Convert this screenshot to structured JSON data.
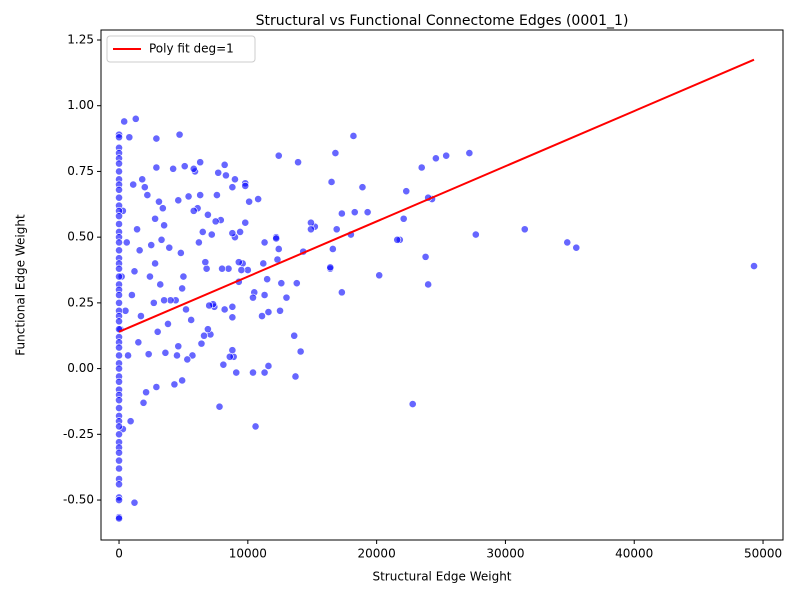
{
  "chart_data": {
    "type": "scatter",
    "title": "Structural vs Functional Connectome Edges (0001_1)",
    "xlabel": "Structural Edge Weight",
    "ylabel": "Functional Edge Weight",
    "xlim": [
      -1400,
      51550
    ],
    "ylim": [
      -0.652,
      1.288
    ],
    "xticks": [
      0,
      10000,
      20000,
      30000,
      40000,
      50000
    ],
    "yticks": [
      {
        "value": -0.5,
        "label": "-0.50"
      },
      -0.25,
      {
        "value": 0,
        "label": "0.00"
      },
      0.25,
      {
        "value": 0.5,
        "label": "0.50"
      },
      0.75,
      {
        "value": 1,
        "label": "1.00"
      },
      1.25
    ],
    "grid": false,
    "legend": "upper left",
    "series": [
      {
        "type": "scatter",
        "color": "#0000ff",
        "x": [
          49300,
          35500,
          34800,
          31500,
          27700,
          27200,
          25400,
          24600,
          24300,
          24000,
          24000,
          23800,
          23500,
          22800,
          22300,
          22100,
          21800,
          21600,
          20200,
          19300,
          18900,
          18300,
          18200,
          18000,
          17300,
          17300,
          16900,
          16800,
          16600,
          16500,
          16400,
          16400,
          15200,
          14900,
          14900,
          14300,
          14100,
          13900,
          13800,
          13700,
          13600,
          13000,
          12600,
          12400,
          12400,
          12300,
          12200,
          12200,
          12500,
          11600,
          11600,
          11500,
          11300,
          11300,
          11300,
          11100,
          11200,
          10800,
          10600,
          10500,
          10400,
          10400,
          10100,
          10000,
          9800,
          9800,
          9800,
          9600,
          9500,
          9400,
          9300,
          9300,
          9100,
          9000,
          9000,
          8900,
          8800,
          8800,
          8800,
          8800,
          8800,
          8600,
          8500,
          8300,
          8200,
          8200,
          8100,
          8000,
          7900,
          7800,
          7700,
          7600,
          7500,
          7400,
          7300,
          7200,
          7100,
          7000,
          6900,
          6900,
          6800,
          6700,
          6600,
          6500,
          6400,
          6300,
          6300,
          6200,
          6100,
          5900,
          5800,
          5800,
          5700,
          5600,
          5400,
          5300,
          5200,
          5100,
          5000,
          4900,
          4900,
          4800,
          4700,
          4600,
          4600,
          4500,
          4400,
          4300,
          4200,
          4000,
          3900,
          3800,
          3600,
          3500,
          3500,
          3400,
          3300,
          3200,
          3100,
          3000,
          2900,
          2900,
          2900,
          2800,
          2800,
          2700,
          2500,
          2400,
          2300,
          2200,
          2100,
          2000,
          1900,
          1800,
          1700,
          1600,
          1500,
          1400,
          1300,
          1200,
          1200,
          1100,
          1000,
          900,
          800,
          700,
          600,
          500,
          400,
          300,
          300,
          200,
          100,
          0,
          0,
          0,
          0,
          0,
          0,
          0,
          0,
          0,
          0,
          0,
          0,
          0,
          0,
          0,
          0,
          0,
          0,
          0,
          0,
          0,
          0,
          0,
          0,
          0,
          0,
          0,
          0,
          0,
          0,
          0,
          0,
          0,
          0,
          0,
          0,
          0,
          0,
          0,
          0,
          0,
          0,
          0,
          0,
          0,
          0,
          0,
          0,
          0,
          0,
          0,
          0,
          0,
          0,
          0,
          0,
          0,
          0
        ],
        "values": [
          0.39,
          0.46,
          0.48,
          0.53,
          0.51,
          0.82,
          0.81,
          0.8,
          0.645,
          0.65,
          0.32,
          0.425,
          0.765,
          -0.135,
          0.675,
          0.57,
          0.49,
          0.49,
          0.355,
          0.595,
          0.69,
          0.595,
          0.885,
          0.51,
          0.59,
          0.29,
          0.53,
          0.82,
          0.455,
          0.71,
          0.38,
          0.385,
          0.54,
          0.555,
          0.53,
          0.445,
          0.065,
          0.785,
          0.325,
          -0.03,
          0.125,
          0.27,
          0.325,
          0.455,
          0.81,
          0.415,
          0.5,
          0.495,
          0.22,
          0.215,
          0.01,
          0.34,
          -0.015,
          0.48,
          0.28,
          0.2,
          0.4,
          0.645,
          -0.22,
          0.29,
          0.27,
          -0.015,
          0.635,
          0.375,
          0.555,
          0.705,
          0.695,
          0.4,
          0.375,
          0.52,
          0.33,
          0.405,
          -0.015,
          0.72,
          0.5,
          0.045,
          0.69,
          0.07,
          0.195,
          0.235,
          0.515,
          0.045,
          0.38,
          0.735,
          0.775,
          0.225,
          0.015,
          0.38,
          0.565,
          -0.145,
          0.745,
          0.66,
          0.56,
          0.235,
          0.245,
          0.51,
          0.13,
          0.24,
          0.585,
          0.15,
          0.38,
          0.405,
          0.125,
          0.52,
          0.095,
          0.785,
          0.66,
          0.48,
          0.61,
          0.75,
          0.76,
          0.6,
          0.05,
          0.185,
          0.655,
          0.035,
          0.225,
          0.77,
          0.35,
          0.305,
          -0.045,
          0.44,
          0.89,
          0.64,
          0.085,
          0.05,
          0.26,
          -0.06,
          0.76,
          0.26,
          0.46,
          0.17,
          0.06,
          0.545,
          0.26,
          0.61,
          0.49,
          0.32,
          0.635,
          0.14,
          0.875,
          0.765,
          -0.07,
          0.4,
          0.57,
          0.25,
          0.47,
          0.35,
          0.055,
          0.66,
          -0.09,
          0.69,
          -0.13,
          0.72,
          0.2,
          0.45,
          0.1,
          0.53,
          0.95,
          -0.51,
          0.37,
          0.7,
          0.28,
          -0.2,
          0.88,
          0.05,
          0.48,
          0.22,
          0.94,
          0.6,
          -0.23,
          0.35,
          0.15,
          0.89,
          0.88,
          0.84,
          0.82,
          0.8,
          0.78,
          0.75,
          0.72,
          0.7,
          0.68,
          0.65,
          0.62,
          0.6,
          0.58,
          0.55,
          0.52,
          0.5,
          0.48,
          0.45,
          0.42,
          0.4,
          0.38,
          0.35,
          0.32,
          0.3,
          0.28,
          0.25,
          0.22,
          0.2,
          0.18,
          0.15,
          0.12,
          0.1,
          0.08,
          0.05,
          0.02,
          0,
          -0.03,
          -0.05,
          -0.08,
          -0.1,
          -0.12,
          -0.15,
          -0.18,
          -0.2,
          -0.22,
          -0.25,
          -0.28,
          -0.3,
          -0.32,
          -0.35,
          -0.38,
          -0.42,
          -0.44,
          -0.49,
          -0.5,
          -0.565,
          -0.57
        ]
      },
      {
        "type": "line",
        "name": "Poly fit deg=1",
        "color": "#ff0000",
        "x": [
          0,
          49300
        ],
        "values": [
          0.14,
          1.175
        ]
      }
    ]
  }
}
